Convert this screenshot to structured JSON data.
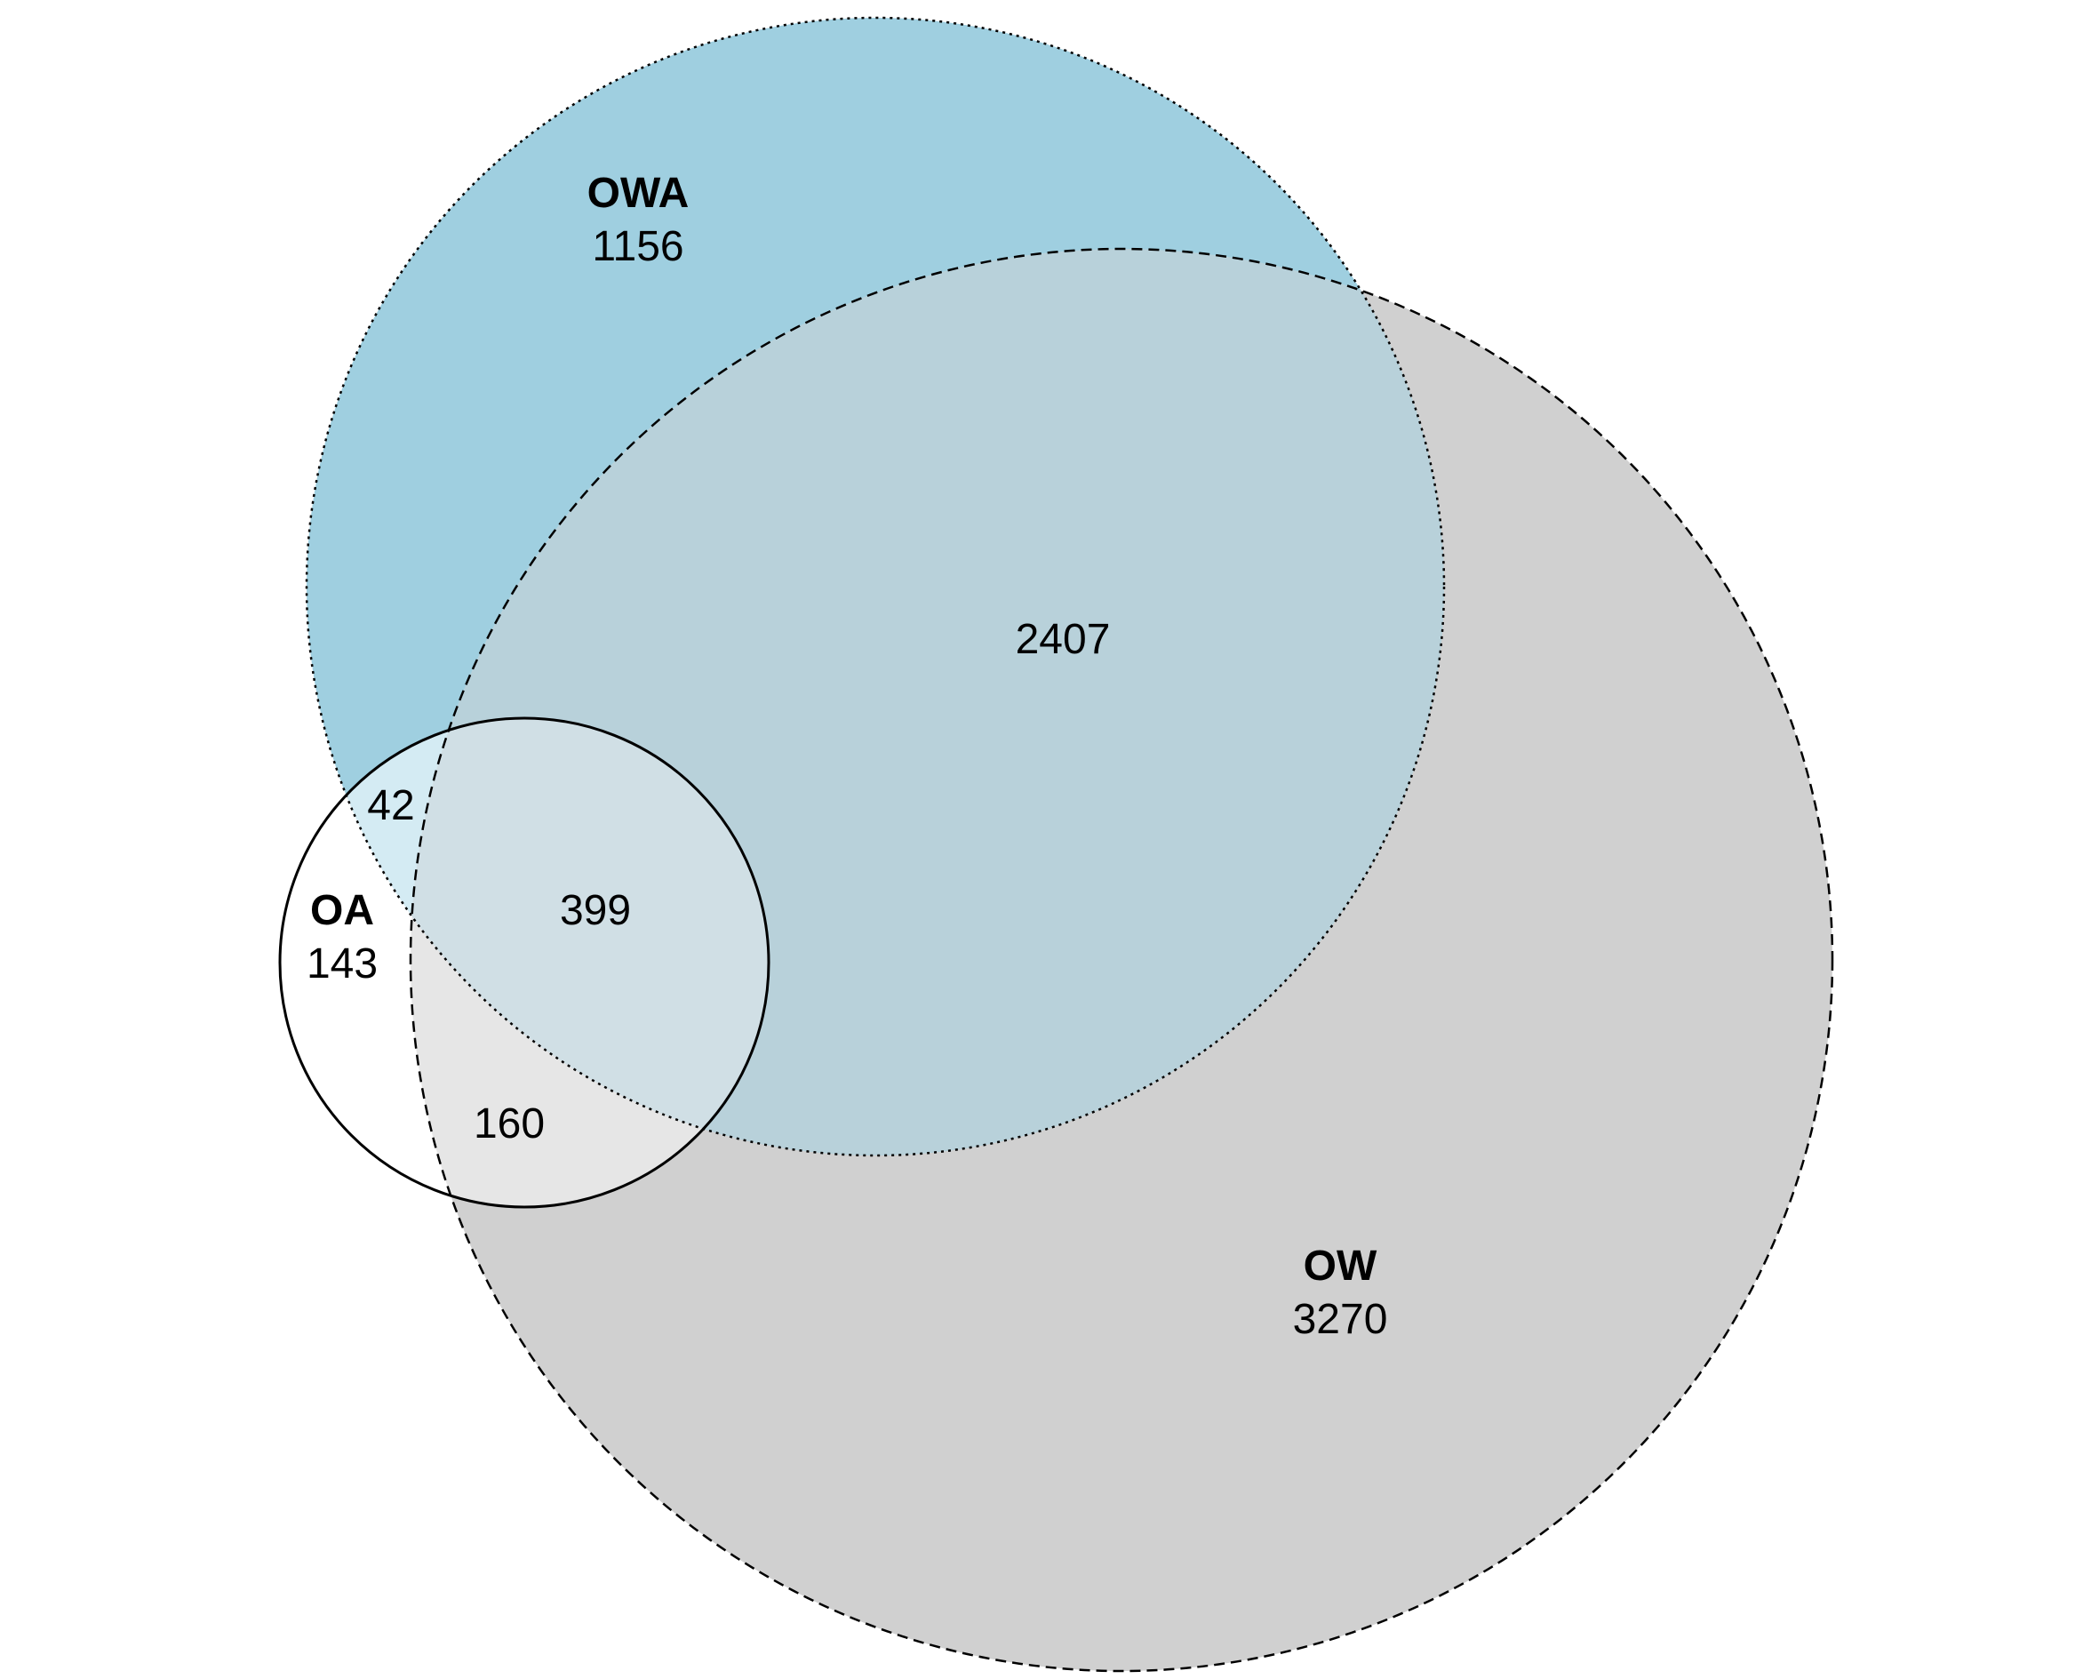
{
  "venn": {
    "sets": {
      "owa": {
        "name": "OWA",
        "count": "1156",
        "fill": "#9fcfe0"
      },
      "ow": {
        "name": "OW",
        "count": "3270",
        "fill": "#d0d0d0"
      },
      "oa": {
        "name": "OA",
        "count": "143",
        "fill": "#ffffff"
      }
    },
    "intersections": {
      "owa_ow": "2407",
      "owa_oa": "42",
      "owa_ow_oa": "399",
      "ow_oa": "160"
    },
    "colors": {
      "owa_ow": "#b8d1da",
      "owa_oa": "#d4ebf3",
      "owa_ow_oa": "#d0dfe5",
      "ow_oa": "#e6e6e6",
      "stroke": "#000000"
    }
  }
}
